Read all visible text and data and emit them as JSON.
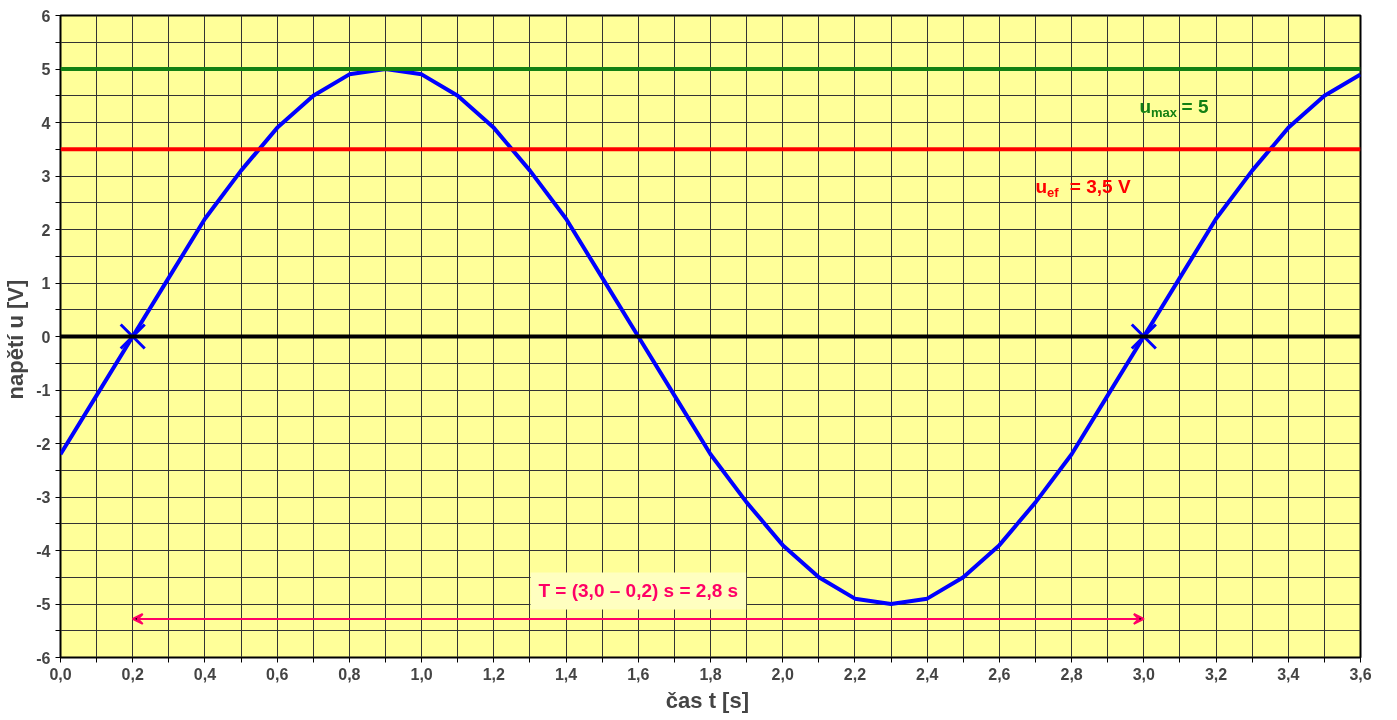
{
  "chart_data": {
    "type": "line",
    "xlabel": "čas  t [s]",
    "ylabel": "napětí  u [V]",
    "xlim": [
      0,
      3.6
    ],
    "ylim": [
      -6,
      6
    ],
    "xticks": [
      {
        "value": 0,
        "label": "0,0"
      },
      {
        "value": 0.1,
        "label": null
      },
      {
        "value": 0.2,
        "label": "0,2"
      },
      {
        "value": 0.3,
        "label": null
      },
      {
        "value": 0.4,
        "label": "0,4"
      },
      {
        "value": 0.5,
        "label": null
      },
      {
        "value": 0.6,
        "label": "0,6"
      },
      {
        "value": 0.7,
        "label": null
      },
      {
        "value": 0.8,
        "label": "0,8"
      },
      {
        "value": 0.9,
        "label": null
      },
      {
        "value": 1.0,
        "label": "1,0"
      },
      {
        "value": 1.1,
        "label": null
      },
      {
        "value": 1.2,
        "label": "1,2"
      },
      {
        "value": 1.3,
        "label": null
      },
      {
        "value": 1.4,
        "label": "1,4"
      },
      {
        "value": 1.5,
        "label": null
      },
      {
        "value": 1.6,
        "label": "1,6"
      },
      {
        "value": 1.7,
        "label": null
      },
      {
        "value": 1.8,
        "label": "1,8"
      },
      {
        "value": 1.9,
        "label": null
      },
      {
        "value": 2.0,
        "label": "2,0"
      },
      {
        "value": 2.1,
        "label": null
      },
      {
        "value": 2.2,
        "label": "2,2"
      },
      {
        "value": 2.3,
        "label": null
      },
      {
        "value": 2.4,
        "label": "2,4"
      },
      {
        "value": 2.5,
        "label": null
      },
      {
        "value": 2.6,
        "label": "2,6"
      },
      {
        "value": 2.7,
        "label": null
      },
      {
        "value": 2.8,
        "label": "2,8"
      },
      {
        "value": 2.9,
        "label": null
      },
      {
        "value": 3.0,
        "label": "3,0"
      },
      {
        "value": 3.1,
        "label": null
      },
      {
        "value": 3.2,
        "label": "3,2"
      },
      {
        "value": 3.3,
        "label": null
      },
      {
        "value": 3.4,
        "label": "3,4"
      },
      {
        "value": 3.5,
        "label": null
      },
      {
        "value": 3.6,
        "label": "3,6"
      }
    ],
    "yticks": [
      -6,
      {
        "value": -5.5,
        "label": null
      },
      -5,
      {
        "value": -4.5,
        "label": null
      },
      -4,
      {
        "value": -3.5,
        "label": null
      },
      -3,
      {
        "value": -2.5,
        "label": null
      },
      -2,
      {
        "value": -1.5,
        "label": null
      },
      -1,
      {
        "value": -0.5,
        "label": null
      },
      0,
      {
        "value": 0.5,
        "label": null
      },
      1,
      {
        "value": 1.5,
        "label": null
      },
      2,
      {
        "value": 2.5,
        "label": null
      },
      3,
      {
        "value": 3.5,
        "label": null
      },
      4,
      {
        "value": 4.5,
        "label": null
      },
      5,
      {
        "value": 5.5,
        "label": null
      },
      6
    ],
    "grid": true,
    "line_style": "solid",
    "marker": "none",
    "x": [
      0,
      0.1,
      0.2,
      0.3,
      0.4,
      0.5,
      0.6,
      0.7,
      0.8,
      0.9,
      1.0,
      1.1,
      1.2,
      1.3,
      1.4,
      1.5,
      1.6,
      1.7,
      1.8,
      1.9,
      2.0,
      2.1,
      2.2,
      2.3,
      2.4,
      2.5,
      2.6,
      2.7,
      2.8,
      2.9,
      3.0,
      3.1,
      3.2,
      3.3,
      3.4,
      3.5,
      3.6
    ],
    "series": [
      {
        "color": "#0000ff",
        "values": [
          -2.2,
          -1.1,
          0,
          1.1,
          2.2,
          3.1,
          3.9,
          4.5,
          4.9,
          5.0,
          4.9,
          4.5,
          3.9,
          3.1,
          2.2,
          1.1,
          0,
          -1.1,
          -2.2,
          -3.1,
          -3.9,
          -4.5,
          -4.9,
          -5.0,
          -4.9,
          -4.5,
          -3.9,
          -3.1,
          -2.2,
          -1.1,
          0,
          1.1,
          2.2,
          3.1,
          3.9,
          4.5,
          4.9
        ]
      },
      {
        "type": "scatter",
        "marker": "cross",
        "color": "#0000ff",
        "x": [
          0.2,
          3.0
        ],
        "values": [
          0,
          0
        ]
      }
    ],
    "ref_lines": [
      {
        "axis": "y",
        "value": 5,
        "label": "u$_{max}$ = 5",
        "color": "#138013"
      },
      {
        "axis": "y",
        "value": 3.5,
        "label": "u$_{ef}$ = 3,5 V",
        "color": "#ff0000"
      },
      {
        "axis": "y",
        "value": 0,
        "label": null,
        "color": "#000000"
      }
    ],
    "annotations": [
      "T = (3,0 – 0,2) s = 2,8 s"
    ]
  }
}
